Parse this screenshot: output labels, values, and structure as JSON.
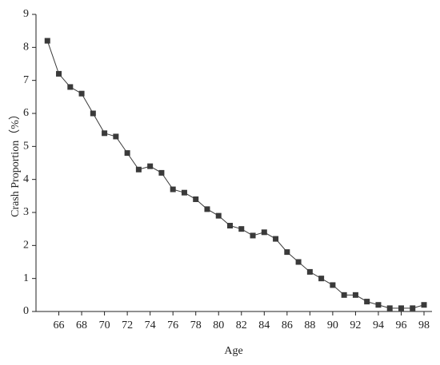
{
  "chart_data": {
    "type": "line",
    "x_label": "Age",
    "y_label": "Crash Proportion（%）",
    "x": [
      65,
      66,
      67,
      68,
      69,
      70,
      71,
      72,
      73,
      74,
      75,
      76,
      77,
      78,
      79,
      80,
      81,
      82,
      83,
      84,
      85,
      86,
      87,
      88,
      89,
      90,
      91,
      92,
      93,
      94,
      95,
      96,
      97,
      98
    ],
    "series": [
      {
        "color": "#3a3a3a",
        "values": [
          8.2,
          7.2,
          6.8,
          6.6,
          6.0,
          5.4,
          5.3,
          4.8,
          4.3,
          4.4,
          4.2,
          3.7,
          3.6,
          3.4,
          3.1,
          2.9,
          2.6,
          2.5,
          2.3,
          2.4,
          2.2,
          1.8,
          1.5,
          1.2,
          1.0,
          0.8,
          0.5,
          0.5,
          0.3,
          0.2,
          0.1,
          0.1,
          0.1,
          0.2
        ]
      }
    ],
    "xlim": [
      64,
      98.7
    ],
    "ylim": [
      0,
      9
    ],
    "xticks": [
      66,
      68,
      70,
      72,
      74,
      76,
      78,
      80,
      82,
      84,
      86,
      88,
      90,
      92,
      94,
      96,
      98
    ],
    "yticks": [
      0,
      1,
      2,
      3,
      4,
      5,
      6,
      7,
      8,
      9
    ]
  }
}
